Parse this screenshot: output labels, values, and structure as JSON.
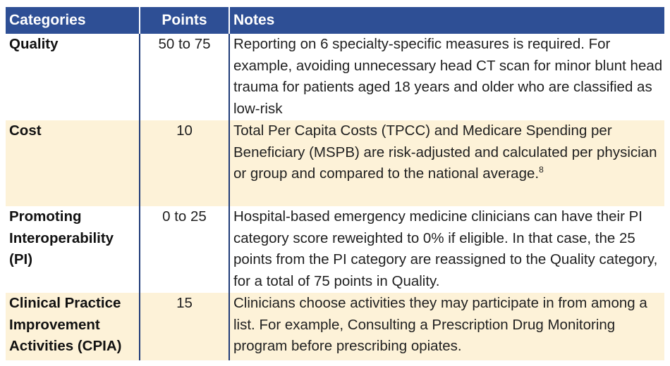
{
  "table": {
    "headers": [
      "Categories",
      "Points",
      "Notes"
    ],
    "rows": [
      {
        "category": "Quality",
        "points": "50 to 75",
        "notes": "Reporting on 6 specialty-specific measures is required. For example, avoiding unnecessary head CT scan for minor blunt head trauma for patients aged 18 years and older who are classified as low-risk",
        "footnote": ""
      },
      {
        "category": "Cost",
        "points": "10",
        "notes": "Total Per Capita Costs (TPCC) and Medicare Spending per Beneficiary (MSPB) are risk-adjusted and calculated per physician or group and compared to the national average.",
        "footnote": "8"
      },
      {
        "category": "Promoting Interoperability (PI)",
        "points": "0 to 25",
        "notes": "Hospital-based emergency medicine clinicians can have their PI category score reweighted to 0% if eligible. In that case, the 25 points from the PI category are reassigned to the Quality category, for a total of 75 points in Quality.",
        "footnote": ""
      },
      {
        "category": "Clinical Practice Improvement Activities (CPIA)",
        "points": "15",
        "notes": "Clinicians choose activities they may participate in from among a list. For example, Consulting a Prescription Drug Monitoring program before prescribing opiates.",
        "footnote": ""
      }
    ]
  },
  "colors": {
    "header_bg": "#2e4f95",
    "header_text": "#ffffff",
    "shaded_row_bg": "#fdf2d8",
    "divider": "#1f3b78"
  }
}
